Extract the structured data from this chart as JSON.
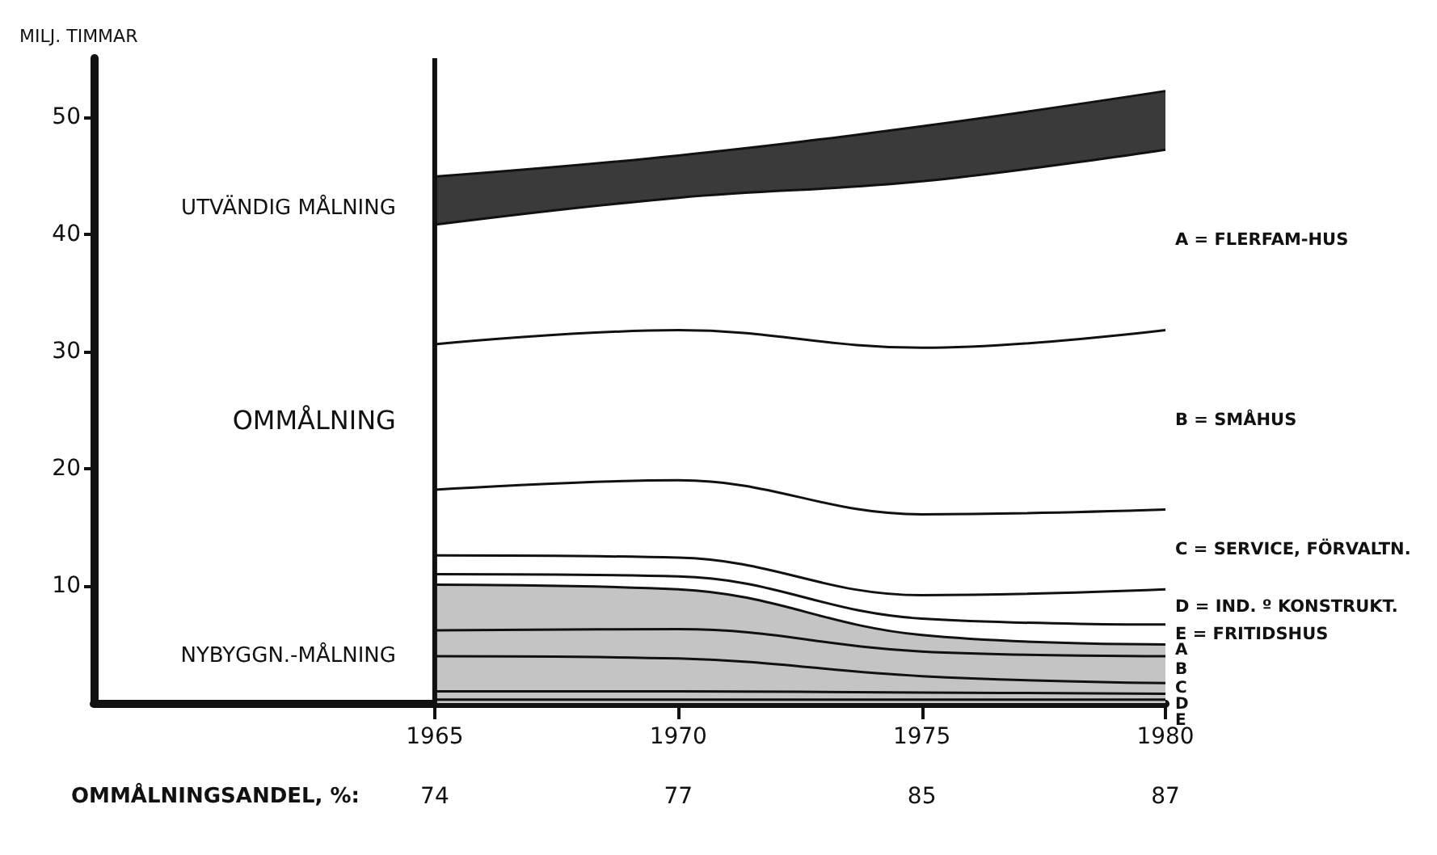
{
  "chart_data": {
    "type": "area",
    "stacked": true,
    "ylabel": "MILJ. TIMMAR",
    "x": [
      1965,
      1970,
      1975,
      1980
    ],
    "xlim": [
      1958,
      1980
    ],
    "xticks": [
      1965,
      1970,
      1975,
      1980
    ],
    "ylim": [
      0,
      55
    ],
    "yticks": [
      10,
      20,
      30,
      40,
      50
    ],
    "series": [
      {
        "name": "E",
        "color": "#c4c4c4",
        "values": [
          0.3,
          0.3,
          0.3,
          0.3
        ]
      },
      {
        "name": "D",
        "color": "#c4c4c4",
        "values": [
          0.7,
          0.7,
          0.6,
          0.5
        ]
      },
      {
        "name": "C",
        "color": "#c4c4c4",
        "values": [
          3.0,
          2.8,
          1.4,
          0.9
        ]
      },
      {
        "name": "B",
        "color": "#c4c4c4",
        "values": [
          2.2,
          2.5,
          2.1,
          2.3
        ]
      },
      {
        "name": "A",
        "color": "#c4c4c4",
        "values": [
          3.9,
          3.4,
          1.4,
          1.0
        ]
      },
      {
        "name": "E = FRITIDSHUS",
        "color": "#ffffff",
        "values": [
          0.9,
          1.1,
          1.4,
          1.7
        ]
      },
      {
        "name": "D = IND. º KONSTRUKT.",
        "color": "#ffffff",
        "values": [
          1.6,
          1.6,
          2.0,
          3.0
        ]
      },
      {
        "name": "C = SERVICE, FÖRVALTN.",
        "color": "#ffffff",
        "values": [
          5.6,
          6.6,
          6.9,
          6.8
        ]
      },
      {
        "name": "B = SMÅHUS",
        "color": "#ffffff",
        "values": [
          12.4,
          12.8,
          14.2,
          15.3
        ]
      },
      {
        "name": "A = FLERFAM-HUS",
        "color": "#ffffff",
        "values": [
          10.2,
          11.3,
          14.2,
          15.4
        ]
      },
      {
        "color": "#3a3a3a",
        "values": [
          4.1,
          3.6,
          4.7,
          5.0
        ]
      }
    ],
    "ref_lines": [
      {
        "axis": "x",
        "value": 1965
      }
    ],
    "annotations": [
      "UTVÄNDIG MÅLNING",
      "OMMÅLNING",
      "NYBYGGN.-MÅLNING",
      "OMMÅLNINGSANDEL, %:",
      "74",
      "77",
      "85",
      "87"
    ]
  }
}
